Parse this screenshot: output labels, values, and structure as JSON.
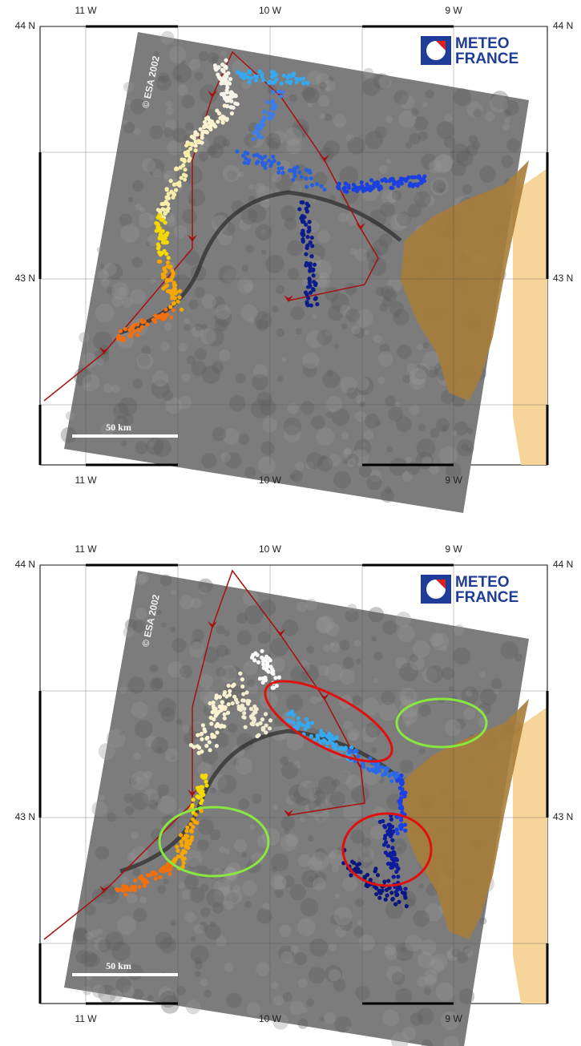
{
  "panels": [
    {
      "lon_top": [
        "11 W",
        "10 W",
        "9 W"
      ],
      "lon_bottom": [
        "11 W",
        "10 W",
        "9 W"
      ],
      "lat_left": [
        "44 N",
        "43 N"
      ],
      "lat_right": [
        "44 N",
        "43 N"
      ],
      "copyright": "© ESA 2002",
      "logo": [
        "METEO",
        "FRANCE"
      ],
      "scale_label": "50 km"
    },
    {
      "lon_top": [
        "11 W",
        "10 W",
        "9 W"
      ],
      "lon_bottom": [
        "11 W",
        "10 W",
        "9 W"
      ],
      "lat_left": [
        "44 N",
        "43 N"
      ],
      "lat_right": [
        "44 N",
        "43 N"
      ],
      "copyright": "© ESA 2002",
      "logo": [
        "METEO",
        "FRANCE"
      ],
      "scale_label": "50 km"
    }
  ]
}
